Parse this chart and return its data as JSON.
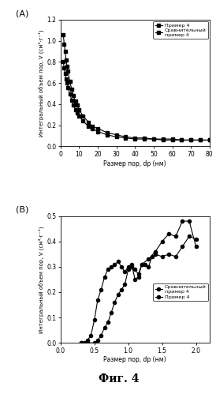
{
  "panel_A": {
    "title": "(A)",
    "xlabel": "Размер пор, dp (нм)",
    "ylabel": "Интегральный объем пор, V (см³·г⁻¹)",
    "xlim": [
      0,
      80
    ],
    "ylim": [
      0,
      1.2
    ],
    "xticks": [
      0,
      10,
      20,
      30,
      40,
      50,
      60,
      70,
      80
    ],
    "yticks": [
      0.0,
      0.2,
      0.4,
      0.6,
      0.8,
      1.0,
      1.2
    ],
    "series1_label": "Пример 4",
    "series2_label": "Сравнительный\nпример 4",
    "series1_x": [
      1.5,
      2,
      2.5,
      3,
      3.5,
      4,
      5,
      6,
      7,
      8,
      9,
      10,
      12,
      15,
      17,
      20,
      25,
      30,
      35,
      40,
      45,
      50,
      55,
      60,
      65,
      70,
      75,
      80
    ],
    "series1_y": [
      1.06,
      0.97,
      0.9,
      0.82,
      0.76,
      0.71,
      0.62,
      0.54,
      0.48,
      0.43,
      0.39,
      0.35,
      0.29,
      0.23,
      0.19,
      0.17,
      0.13,
      0.11,
      0.09,
      0.08,
      0.08,
      0.07,
      0.07,
      0.07,
      0.06,
      0.06,
      0.06,
      0.06
    ],
    "series2_x": [
      1.5,
      2,
      2.5,
      3,
      3.5,
      4,
      5,
      6,
      7,
      8,
      9,
      10,
      12,
      15,
      17,
      20,
      25,
      30,
      35,
      40,
      45,
      50,
      55,
      60,
      65,
      70,
      75,
      80
    ],
    "series2_y": [
      0.8,
      0.74,
      0.69,
      0.64,
      0.6,
      0.56,
      0.5,
      0.44,
      0.39,
      0.35,
      0.32,
      0.29,
      0.24,
      0.19,
      0.17,
      0.14,
      0.11,
      0.09,
      0.08,
      0.07,
      0.07,
      0.07,
      0.06,
      0.06,
      0.06,
      0.06,
      0.06,
      0.06
    ],
    "color": "black",
    "marker": "s",
    "markersize": 3.0,
    "linewidth": 0.8
  },
  "panel_B": {
    "title": "(B)",
    "xlabel": "Размер пор, dp (нм)",
    "ylabel": "Интегральный объем пор, V (см³·г⁻¹)",
    "xlim": [
      0,
      2.2
    ],
    "ylim": [
      0,
      0.5
    ],
    "xticks": [
      0,
      0.5,
      1.0,
      1.5,
      2.0
    ],
    "yticks": [
      0.0,
      0.1,
      0.2,
      0.3,
      0.4,
      0.5
    ],
    "series1_label": "Сравнительный\nпример 4",
    "series2_label": "Пример 4",
    "series1_x": [
      0.3,
      0.35,
      0.4,
      0.45,
      0.5,
      0.55,
      0.6,
      0.65,
      0.7,
      0.75,
      0.8,
      0.85,
      0.9,
      0.95,
      1.0,
      1.05,
      1.1,
      1.15,
      1.2,
      1.25,
      1.3,
      1.35,
      1.4,
      1.5,
      1.6,
      1.7,
      1.8,
      1.9,
      2.0
    ],
    "series1_y": [
      0.0,
      0.0,
      0.01,
      0.03,
      0.09,
      0.17,
      0.21,
      0.26,
      0.29,
      0.3,
      0.31,
      0.32,
      0.3,
      0.28,
      0.3,
      0.31,
      0.25,
      0.26,
      0.31,
      0.31,
      0.3,
      0.34,
      0.35,
      0.34,
      0.35,
      0.34,
      0.38,
      0.42,
      0.41
    ],
    "series2_x": [
      0.3,
      0.4,
      0.5,
      0.55,
      0.6,
      0.65,
      0.7,
      0.75,
      0.8,
      0.85,
      0.9,
      0.95,
      1.0,
      1.05,
      1.1,
      1.15,
      1.2,
      1.3,
      1.4,
      1.5,
      1.6,
      1.7,
      1.8,
      1.9,
      2.0
    ],
    "series2_y": [
      0.0,
      0.0,
      0.0,
      0.01,
      0.03,
      0.06,
      0.08,
      0.12,
      0.16,
      0.19,
      0.21,
      0.23,
      0.29,
      0.3,
      0.29,
      0.27,
      0.31,
      0.33,
      0.36,
      0.4,
      0.43,
      0.42,
      0.48,
      0.48,
      0.38
    ],
    "color": "black",
    "marker": "o",
    "markersize": 3.0,
    "linewidth": 0.8
  },
  "fig_label": "Фиг. 4",
  "background_color": "#ffffff"
}
